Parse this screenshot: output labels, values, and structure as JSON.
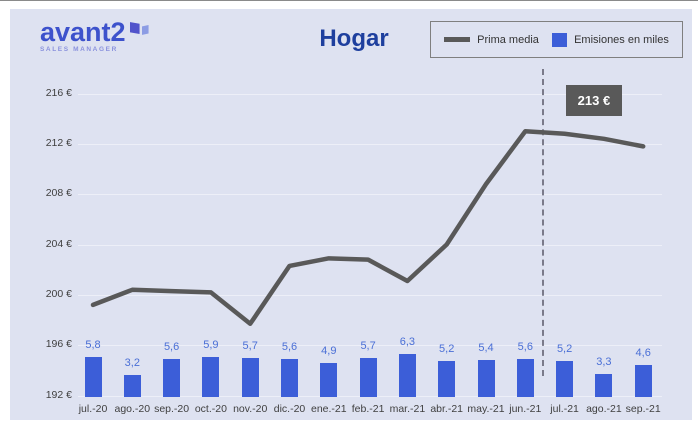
{
  "header": {
    "logo_text": "avant2",
    "logo_subtitle": "SALES MANAGER",
    "title": "Hogar"
  },
  "legend": {
    "prima": {
      "label": "Prima media"
    },
    "emisiones": {
      "label": "Emisiones en miles"
    }
  },
  "chart_data": {
    "type": "combo",
    "categories": [
      "jul.-20",
      "ago.-20",
      "sep.-20",
      "oct.-20",
      "nov.-20",
      "dic.-20",
      "ene.-21",
      "feb.-21",
      "mar.-21",
      "abr.-21",
      "may.-21",
      "jun.-21",
      "jul.-21",
      "ago.-21",
      "sep.-21"
    ],
    "series": [
      {
        "name": "Prima media",
        "type": "line",
        "unit": "EUR",
        "values": [
          199.2,
          200.4,
          200.3,
          200.2,
          197.7,
          202.3,
          202.9,
          202.8,
          201.1,
          204.0,
          208.8,
          213.0,
          212.8,
          212.4,
          211.8
        ]
      },
      {
        "name": "Emisiones en miles",
        "type": "bar",
        "values": [
          5.8,
          3.2,
          5.6,
          5.9,
          5.7,
          5.6,
          4.9,
          5.7,
          6.3,
          5.2,
          5.4,
          5.6,
          5.2,
          3.3,
          4.6
        ],
        "labels": [
          "5,8",
          "3,2",
          "5,6",
          "5,9",
          "5,7",
          "5,6",
          "4,9",
          "5,7",
          "6,3",
          "5,2",
          "5,4",
          "5,6",
          "5,2",
          "3,3",
          "4,6"
        ]
      }
    ],
    "yticks": [
      {
        "v": 216,
        "label": "216 €"
      },
      {
        "v": 212,
        "label": "212 €"
      },
      {
        "v": 208,
        "label": "208 €"
      },
      {
        "v": 204,
        "label": "204 €"
      },
      {
        "v": 200,
        "label": "200 €"
      },
      {
        "v": 196,
        "label": "196 €"
      },
      {
        "v": 192,
        "label": "192 €"
      }
    ],
    "ylim": [
      192,
      216
    ],
    "grid": true,
    "legend_position": "top-right",
    "annotation": {
      "label": "213 €",
      "at_category": "jun.-21"
    },
    "divider_after_category": "jun.-21",
    "colors": {
      "bar": "#3c5ed8",
      "bar_label": "#4a6fd6",
      "line": "#595959",
      "annotation_bg": "#595959",
      "annotation_text": "#ffffff",
      "panel_bg": "#dee2f1",
      "title": "#1e3f9e"
    }
  }
}
